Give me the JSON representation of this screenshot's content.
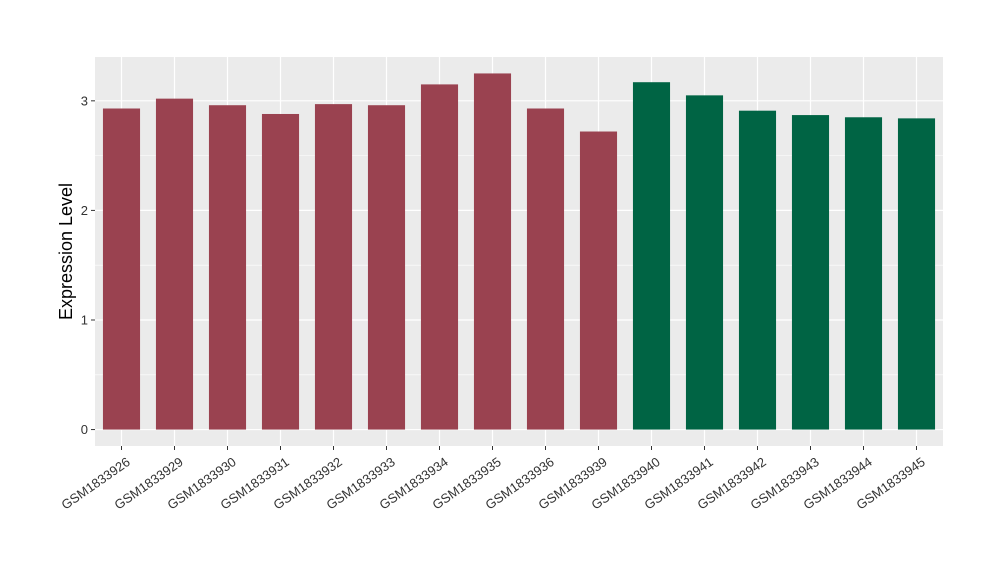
{
  "chart_data": {
    "type": "bar",
    "ylabel": "Expression Level",
    "xlabel": "",
    "ylim": [
      -0.15,
      3.4
    ],
    "yticks": [
      0,
      1,
      2,
      3
    ],
    "grid": true,
    "legend": "none",
    "categories": [
      "GSM1833926",
      "GSM1833929",
      "GSM1833930",
      "GSM1833931",
      "GSM1833932",
      "GSM1833933",
      "GSM1833934",
      "GSM1833935",
      "GSM1833936",
      "GSM1833939",
      "GSM1833940",
      "GSM1833941",
      "GSM1833942",
      "GSM1833943",
      "GSM1833944",
      "GSM1833945"
    ],
    "values": [
      2.93,
      3.02,
      2.96,
      2.88,
      2.97,
      2.96,
      3.15,
      3.25,
      2.93,
      2.72,
      3.17,
      3.05,
      2.91,
      2.87,
      2.85,
      2.84
    ],
    "groups": [
      0,
      0,
      0,
      0,
      0,
      0,
      0,
      0,
      0,
      0,
      1,
      1,
      1,
      1,
      1,
      1
    ],
    "group_colors": [
      "#9A4250",
      "#006444"
    ],
    "panel_background": "#EBEBEB",
    "grid_color": "#FFFFFF"
  }
}
